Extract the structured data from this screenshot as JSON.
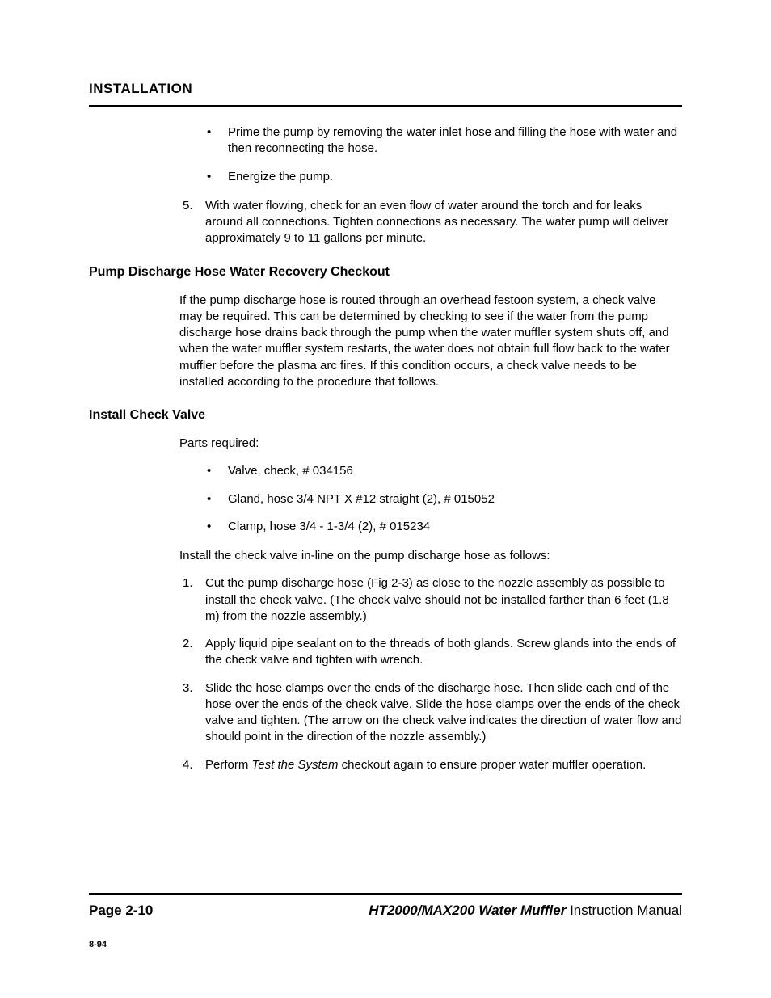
{
  "header": {
    "section": "INSTALLATION"
  },
  "intro_bullets": [
    "Prime the pump by removing the water inlet hose and filling the hose with water and then reconnecting the hose.",
    "Energize the pump."
  ],
  "intro_step5_num": "5.",
  "intro_step5": "With water flowing, check for an even flow of water around the torch and for leaks around all connections.  Tighten connections as necessary.  The water pump will deliver approximately 9 to 11 gallons per minute.",
  "sections": {
    "recovery": {
      "heading": "Pump Discharge Hose Water Recovery Checkout",
      "body": "If the pump discharge hose is routed through an overhead festoon system, a check valve may be required.  This can be determined by checking to see if the water from the pump discharge hose drains back through the pump when the water muffler system shuts off, and when the water muffler system restarts, the water does not obtain full flow back to the water muffler before the plasma arc fires.  If this condition occurs, a check valve needs to be installed according to the procedure that follows."
    },
    "install": {
      "heading": "Install Check Valve",
      "parts_label": "Parts required:",
      "parts": [
        "Valve, check, # 034156",
        "Gland, hose 3/4 NPT X #12 straight (2), # 015052",
        "Clamp, hose 3/4 - 1-3/4 (2), # 015234"
      ],
      "instruction": "Install the check valve in-line on the pump discharge hose as follows:",
      "steps": [
        {
          "num": "1.",
          "text": "Cut the pump discharge hose (Fig 2-3) as close to the nozzle assembly as possible to install the check valve.  (The check valve should not be installed farther than 6 feet (1.8 m) from the nozzle assembly.)"
        },
        {
          "num": "2.",
          "text": "Apply liquid pipe sealant on to the threads of both glands.  Screw glands into the ends of the check valve and tighten with wrench."
        },
        {
          "num": "3.",
          "text": "Slide the hose clamps over the ends of the discharge hose.  Then slide each end of the hose over the ends of the check valve.  Slide the hose clamps over the ends of the check valve and tighten. (The arrow on the check valve indicates the direction of water flow and should point in the direction of the nozzle assembly.)"
        },
        {
          "num": "4.",
          "pre": "Perform ",
          "italic": "Test the System",
          "post": " checkout again to ensure proper water muffler operation."
        }
      ]
    }
  },
  "footer": {
    "page": "Page 2-10",
    "product": "HT2000/MAX200 Water Muffler",
    "doc_type": " Instruction Manual",
    "rev": "8-94"
  }
}
